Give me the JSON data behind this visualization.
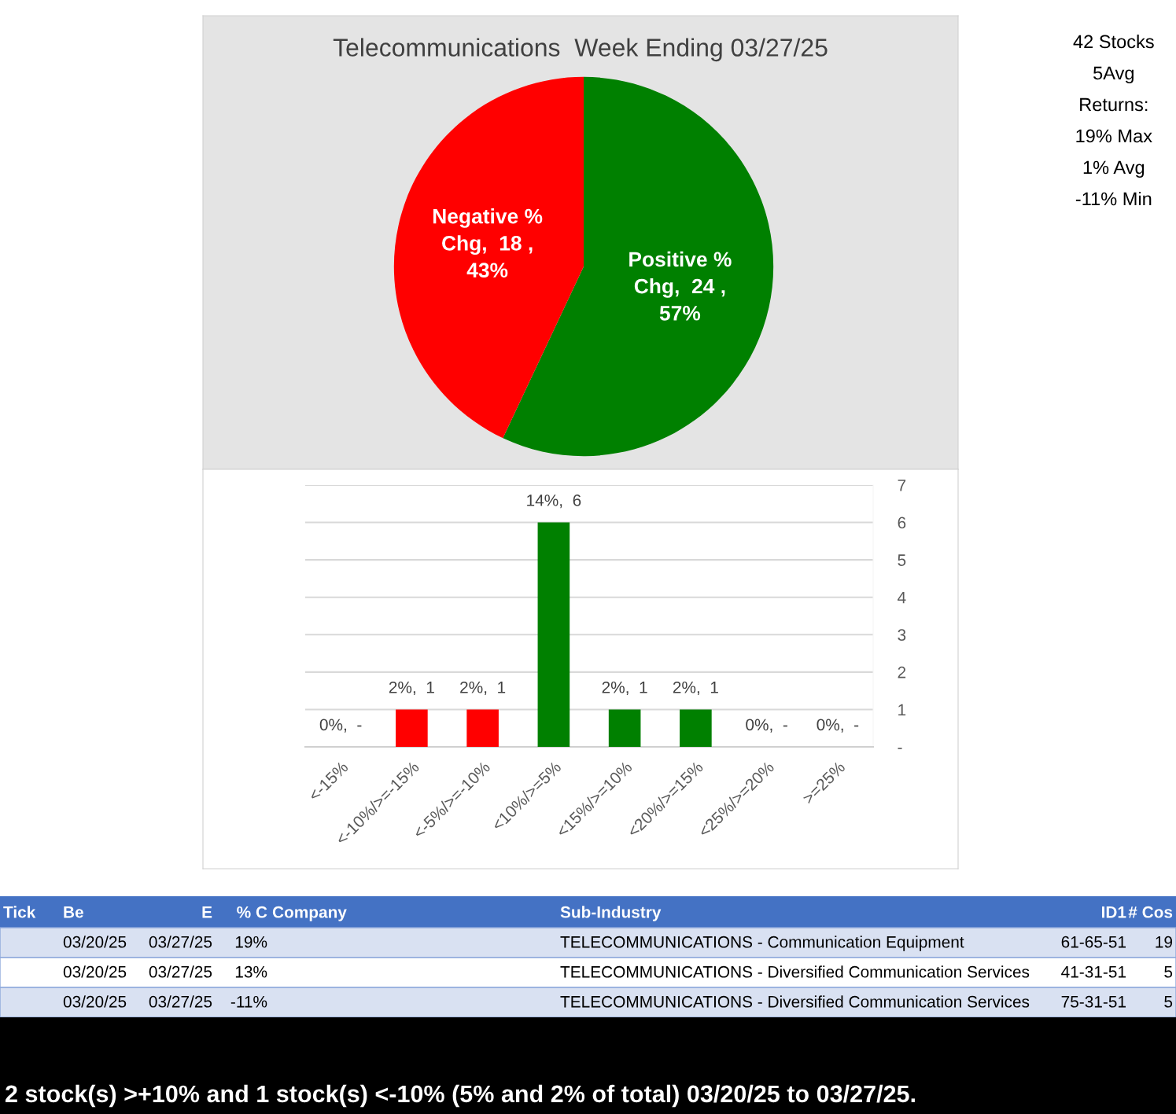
{
  "chart_data": [
    {
      "type": "pie",
      "title": "Telecommunications  Week Ending 03/27/25",
      "categories": [
        "Positive % Chg",
        "Negative % Chg"
      ],
      "values": [
        57,
        43
      ],
      "colors": [
        "#008000",
        "#ff0000"
      ],
      "value_labels": [
        "24 , 57%",
        "18 , 43%"
      ],
      "legend": false
    },
    {
      "type": "bar",
      "categories": [
        "<-15%",
        "<-10%/>=-15%",
        "<-5%/>=-10%",
        "<10%/>=5%",
        "<15%/>=10%",
        "<20%/>=15%",
        "<25%/>=20%",
        ">=25%"
      ],
      "values": [
        0,
        1,
        1,
        6,
        1,
        1,
        0,
        0
      ],
      "colors": [
        "#ff0000",
        "#ff0000",
        "#ff0000",
        "#008000",
        "#008000",
        "#008000",
        "#008000",
        "#008000"
      ],
      "value_labels": [
        "0%,  -",
        "2%,  1",
        "2%,  1",
        "14%,  6",
        "2%,  1",
        "2%,  1",
        "0%,  -",
        "0%,  -"
      ],
      "ylim": [
        0,
        7
      ],
      "yticks": [
        {
          "value": 0,
          "label": "-"
        },
        1,
        2,
        3,
        4,
        5,
        6,
        7
      ],
      "grid": "y",
      "legend": false
    },
    {
      "type": "other",
      "annotations": [
        "42 Stocks",
        "5Avg",
        "Returns:",
        "19% Max",
        "1% Avg",
        "-11% Min"
      ]
    },
    {
      "type": "other",
      "categories": [
        "Tick",
        "Be",
        "E",
        "% C",
        "Company",
        "Sub-Industry",
        "ID1",
        "# Cos"
      ],
      "cell_labels": [
        [
          null,
          "03/20/25",
          "03/27/25",
          "19%",
          null,
          "TELECOMMUNICATIONS - Communication Equipment",
          "61-65-51",
          "19"
        ],
        [
          null,
          "03/20/25",
          "03/27/25",
          "13%",
          null,
          "TELECOMMUNICATIONS - Diversified Communication Services",
          "41-31-51",
          "5"
        ],
        [
          null,
          "03/20/25",
          "03/27/25",
          "-11%",
          null,
          "TELECOMMUNICATIONS - Diversified Communication Services",
          "75-31-51",
          "5"
        ]
      ],
      "annotations": [
        "2 stock(s) >+10% and 1 stock(s) <-10% (5% and 2% of total) 03/20/25 to 03/27/25."
      ]
    }
  ]
}
